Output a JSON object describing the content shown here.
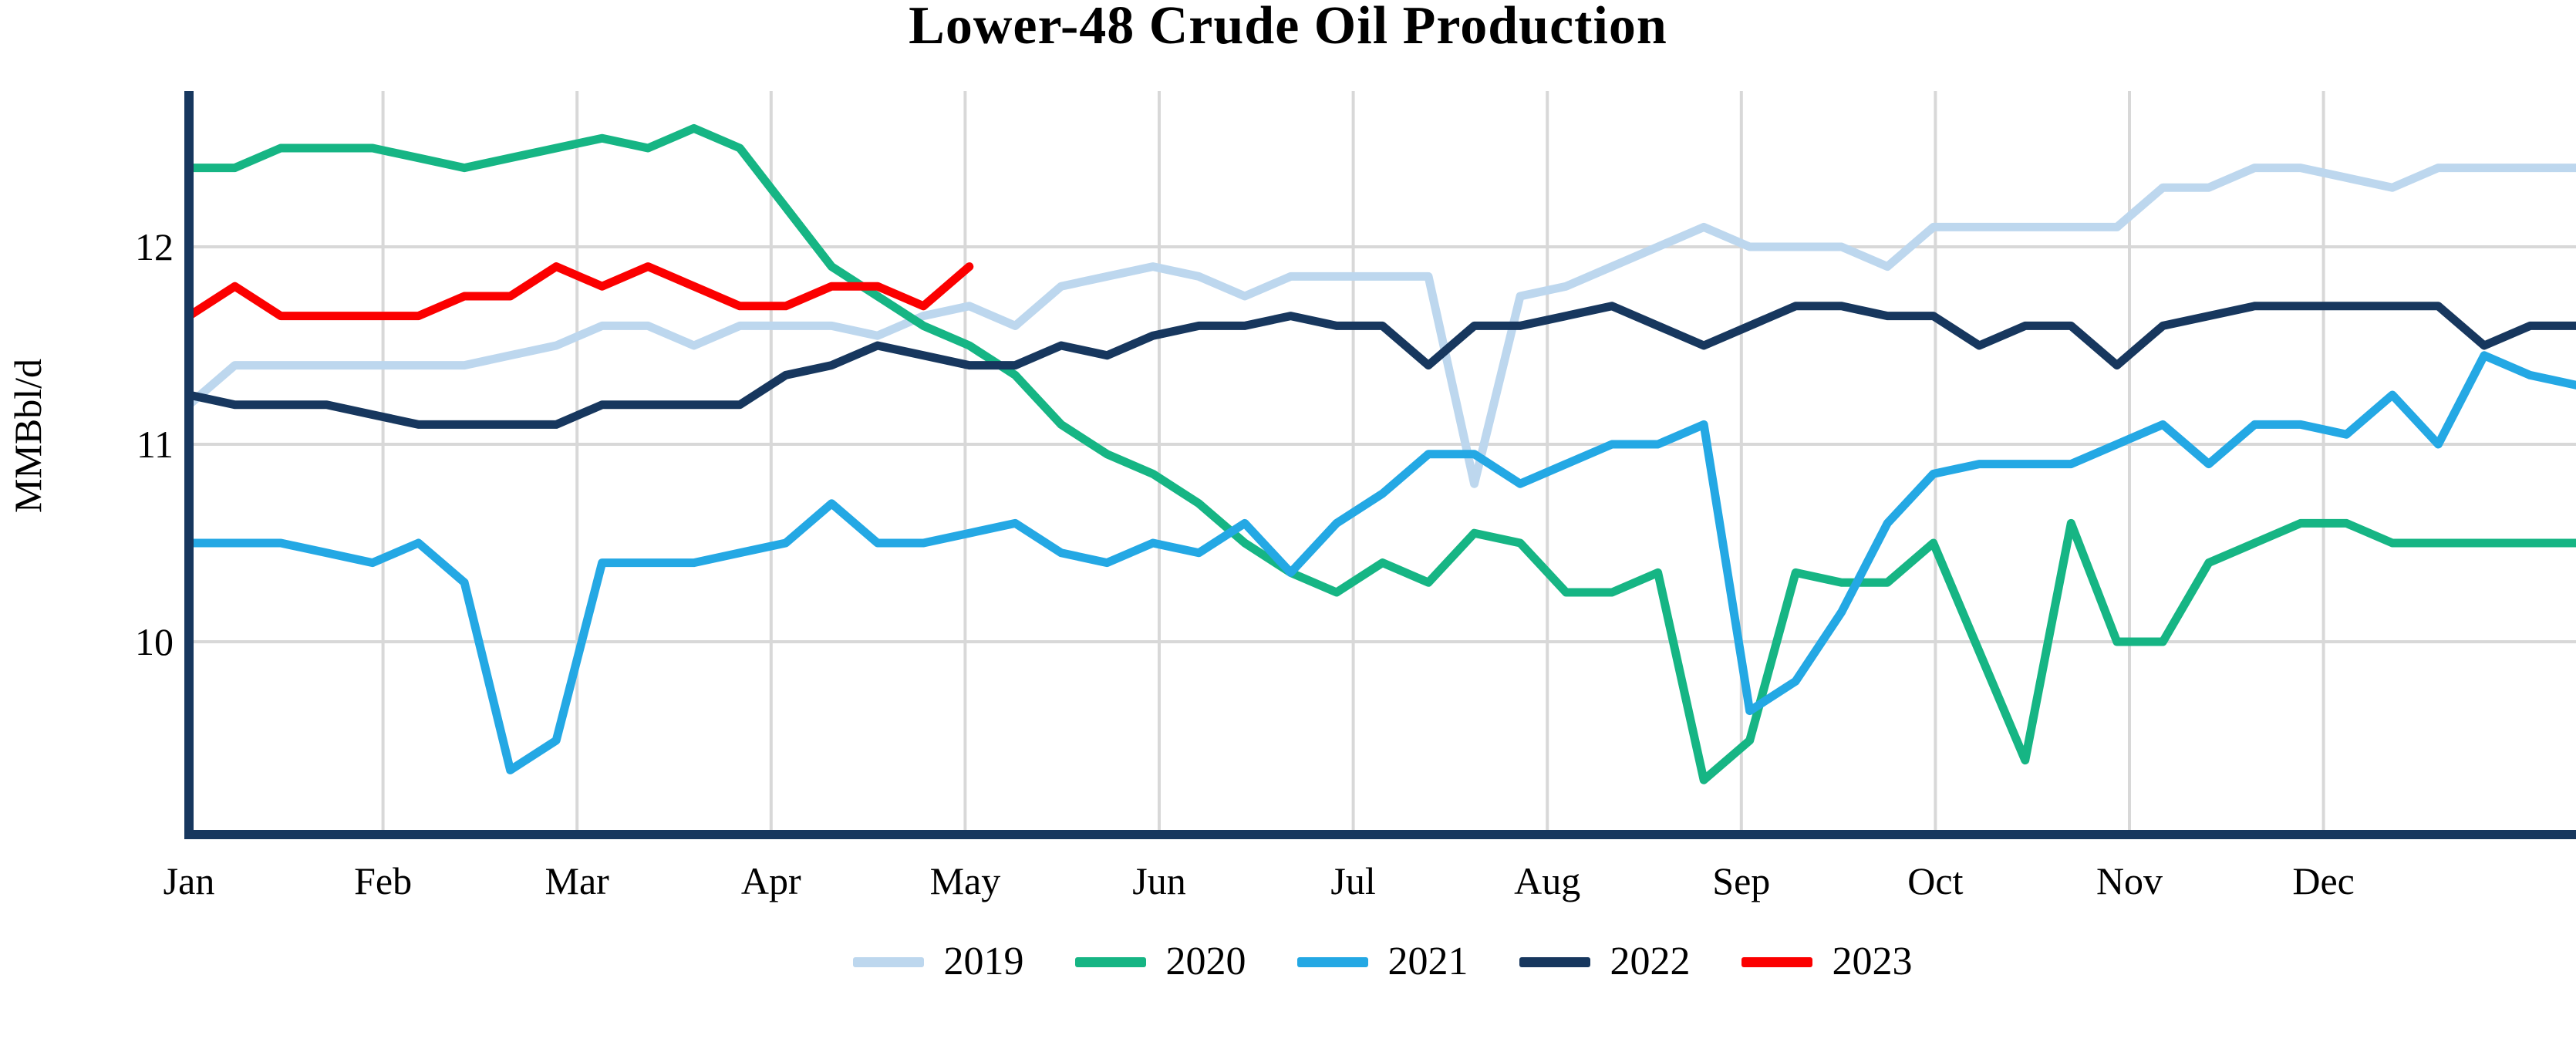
{
  "chart_data": {
    "type": "line",
    "title": "Lower-48 Crude Oil Production",
    "xlabel": "",
    "ylabel": "MMBbl/d",
    "x_tick_labels": [
      "Jan",
      "Feb",
      "Mar",
      "Apr",
      "May",
      "Jun",
      "Jul",
      "Aug",
      "Sep",
      "Oct",
      "Nov",
      "Dec"
    ],
    "y_ticks": [
      12,
      11,
      10
    ],
    "ylim": [
      9.0,
      12.85
    ],
    "x_resolution": "weekly",
    "grid": true,
    "legend_position": "bottom",
    "series": [
      {
        "name": "2019",
        "color": "#BDD7EE",
        "values": [
          11.2,
          11.4,
          11.4,
          11.4,
          11.4,
          11.4,
          11.4,
          11.45,
          11.5,
          11.6,
          11.6,
          11.5,
          11.6,
          11.6,
          11.6,
          11.55,
          11.65,
          11.7,
          11.6,
          11.8,
          11.85,
          11.9,
          11.85,
          11.75,
          11.85,
          11.85,
          11.85,
          11.85,
          10.8,
          11.75,
          11.8,
          11.9,
          12.0,
          12.1,
          12.0,
          12.0,
          12.0,
          11.9,
          12.1,
          12.1,
          12.1,
          12.1,
          12.1,
          12.3,
          12.3,
          12.4,
          12.4,
          12.35,
          12.3,
          12.4,
          12.4,
          12.4,
          12.4
        ]
      },
      {
        "name": "2020",
        "color": "#16B584",
        "values": [
          12.4,
          12.4,
          12.5,
          12.5,
          12.5,
          12.45,
          12.4,
          12.45,
          12.5,
          12.55,
          12.5,
          12.6,
          12.5,
          12.2,
          11.9,
          11.75,
          11.6,
          11.5,
          11.35,
          11.1,
          10.95,
          10.85,
          10.7,
          10.5,
          10.35,
          10.25,
          10.4,
          10.3,
          10.55,
          10.5,
          10.25,
          10.25,
          10.35,
          9.3,
          9.5,
          10.35,
          10.3,
          10.3,
          10.5,
          9.95,
          9.4,
          10.6,
          10.0,
          10.0,
          10.4,
          10.5,
          10.6,
          10.6,
          10.5,
          10.5,
          10.5,
          10.5,
          10.5
        ]
      },
      {
        "name": "2021",
        "color": "#24A8E4",
        "values": [
          10.5,
          10.5,
          10.5,
          10.45,
          10.4,
          10.5,
          10.3,
          9.35,
          9.5,
          10.4,
          10.4,
          10.4,
          10.45,
          10.5,
          10.7,
          10.5,
          10.5,
          10.55,
          10.6,
          10.45,
          10.4,
          10.5,
          10.45,
          10.6,
          10.35,
          10.6,
          10.75,
          10.95,
          10.95,
          10.8,
          10.9,
          11.0,
          11.0,
          11.1,
          9.65,
          9.8,
          10.15,
          10.6,
          10.85,
          10.9,
          10.9,
          10.9,
          11.0,
          11.1,
          10.9,
          11.1,
          11.1,
          11.05,
          11.25,
          11.0,
          11.45,
          11.35,
          11.3
        ]
      },
      {
        "name": "2022",
        "color": "#17375E",
        "values": [
          11.25,
          11.2,
          11.2,
          11.2,
          11.15,
          11.1,
          11.1,
          11.1,
          11.1,
          11.2,
          11.2,
          11.2,
          11.2,
          11.35,
          11.4,
          11.5,
          11.45,
          11.4,
          11.4,
          11.5,
          11.45,
          11.55,
          11.6,
          11.6,
          11.65,
          11.6,
          11.6,
          11.4,
          11.6,
          11.6,
          11.65,
          11.7,
          11.6,
          11.5,
          11.6,
          11.7,
          11.7,
          11.65,
          11.65,
          11.5,
          11.6,
          11.6,
          11.4,
          11.6,
          11.65,
          11.7,
          11.7,
          11.7,
          11.7,
          11.7,
          11.5,
          11.6,
          11.6
        ]
      },
      {
        "name": "2023",
        "color": "#FB0000",
        "values": [
          11.65,
          11.8,
          11.65,
          11.65,
          11.65,
          11.65,
          11.75,
          11.75,
          11.9,
          11.8,
          11.9,
          11.8,
          11.7,
          11.7,
          11.8,
          11.8,
          11.7,
          11.9
        ]
      }
    ]
  },
  "colors": {
    "axis": "#17375E",
    "gridline": "#D8D8D8",
    "background": "#FFFFFF",
    "text": "#000000"
  }
}
